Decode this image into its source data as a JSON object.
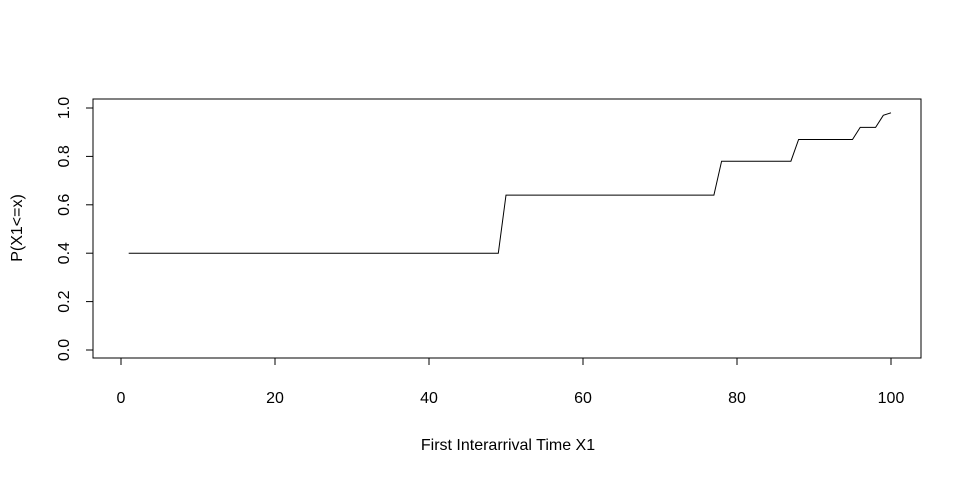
{
  "chart_data": {
    "type": "line",
    "title": "",
    "xlabel": "First Interarrival Time X1",
    "ylabel": "P(X1<=x)",
    "xlim": [
      0,
      100
    ],
    "ylim": [
      0,
      1
    ],
    "x_ticks": [
      0,
      20,
      40,
      60,
      80,
      100
    ],
    "y_ticks": [
      0.0,
      0.2,
      0.4,
      0.6,
      0.8,
      1.0
    ],
    "x_tick_labels": [
      "0",
      "20",
      "40",
      "60",
      "80",
      "100"
    ],
    "y_tick_labels": [
      "0.0",
      "0.2",
      "0.4",
      "0.6",
      "0.8",
      "1.0"
    ],
    "grid": false,
    "legend": "none",
    "line_color": "#000000",
    "series": [
      {
        "x": [
          1,
          49,
          50,
          77,
          78,
          87,
          88,
          95,
          96,
          98,
          99,
          100
        ],
        "y": [
          0.4,
          0.4,
          0.64,
          0.64,
          0.78,
          0.78,
          0.87,
          0.87,
          0.92,
          0.92,
          0.97,
          0.98
        ]
      }
    ]
  }
}
